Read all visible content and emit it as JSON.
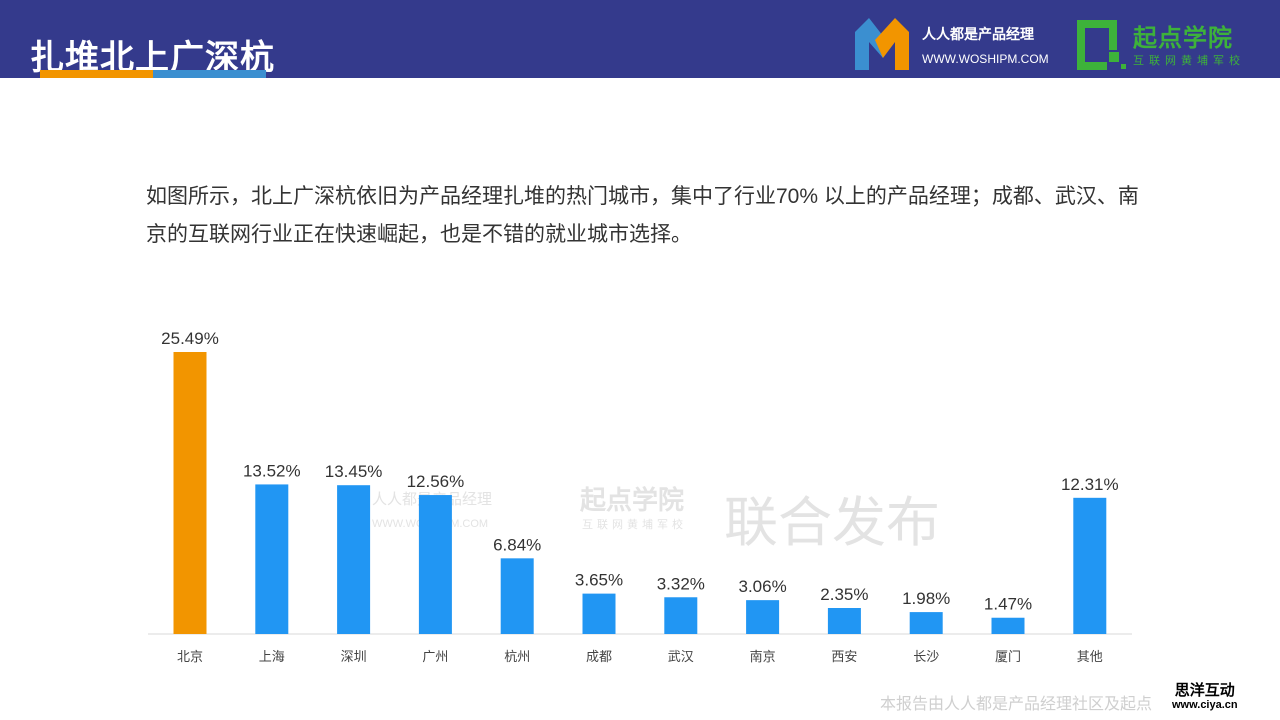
{
  "header": {
    "title": "扎堆北上广深杭",
    "pm_name": "人人都是产品经理",
    "pm_url": "WWW.WOSHIPM.COM",
    "qd_name": "起点学院",
    "qd_sub": "互联网黄埔军校"
  },
  "description": "如图所示，北上广深杭依旧为产品经理扎堆的热门城市，集中了行业70% 以上的产品经理；成都、武汉、南京的互联网行业正在快速崛起，也是不错的就业城市选择。",
  "watermark": {
    "pm_name": "人人都是产品经理",
    "pm_url": "WWW.WOSHIPM.COM",
    "qd_name": "起点学院",
    "qd_sub": "互联网黄埔军校",
    "text": "联合发布"
  },
  "footer": {
    "text": "本报告由人人都是产品经理社区及起点",
    "ciya_name": "思洋互动",
    "ciya_url": "www.ciya.cn"
  },
  "colors": {
    "header": "#343a8c",
    "highlight": "#f29500",
    "bar": "#2196f3"
  },
  "chart_data": {
    "type": "bar",
    "title": "",
    "categories": [
      "北京",
      "上海",
      "深圳",
      "广州",
      "杭州",
      "成都",
      "武汉",
      "南京",
      "西安",
      "长沙",
      "厦门",
      "其他"
    ],
    "values": [
      25.49,
      13.52,
      13.45,
      12.56,
      6.84,
      3.65,
      3.32,
      3.06,
      2.35,
      1.98,
      1.47,
      12.31
    ],
    "labels": [
      "25.49%",
      "13.52%",
      "13.45%",
      "12.56%",
      "6.84%",
      "3.65%",
      "3.32%",
      "3.06%",
      "2.35%",
      "1.98%",
      "1.47%",
      "12.31%"
    ],
    "highlight_index": 0,
    "xlabel": "",
    "ylabel": "",
    "ylim": [
      0,
      25.49
    ],
    "grid": false
  }
}
